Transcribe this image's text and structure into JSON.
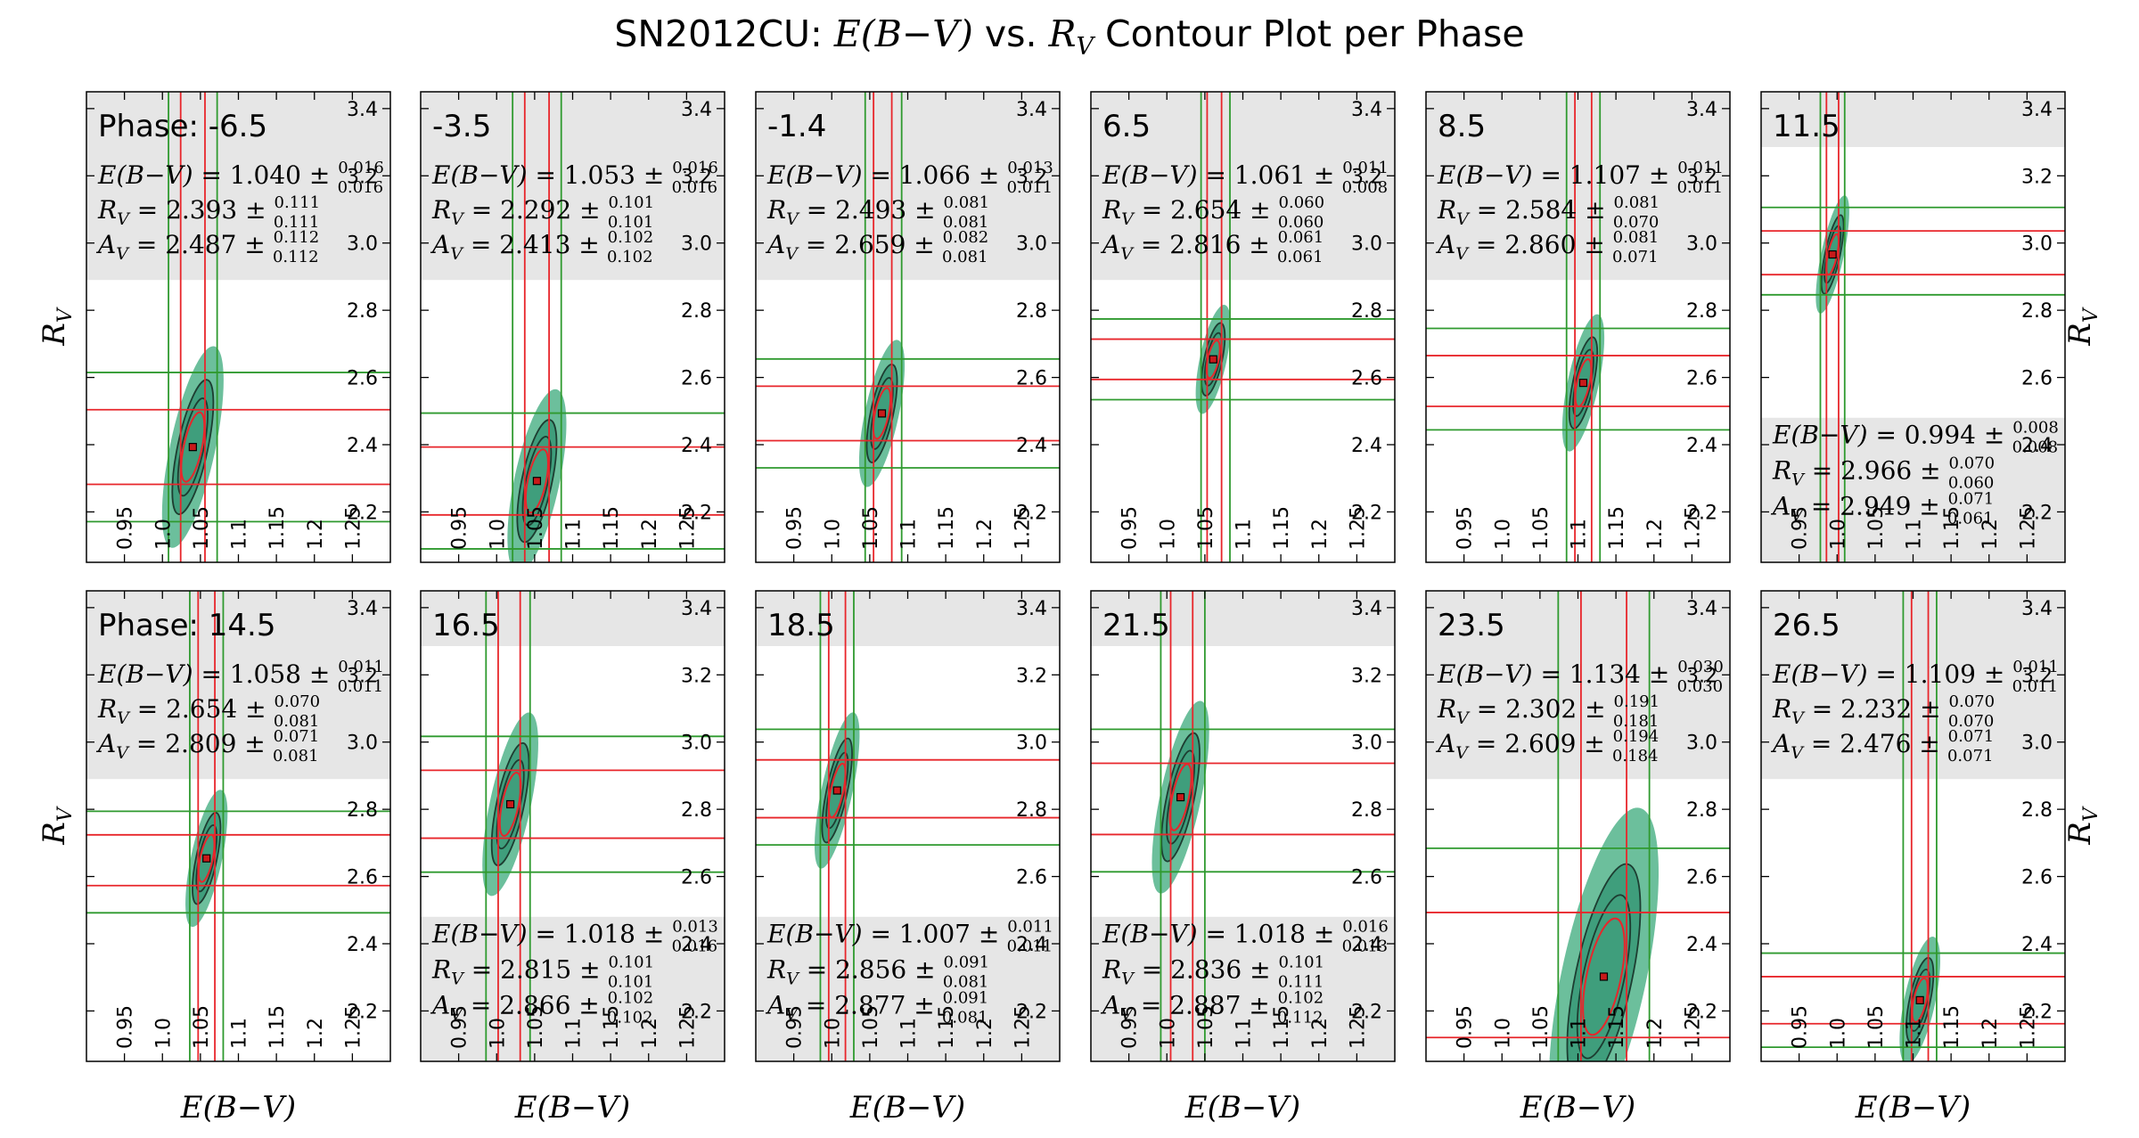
{
  "figure": {
    "title": {
      "prefix": "SN2012CU: ",
      "math1": "E(B−V)",
      "middle": " vs. ",
      "math2": "R",
      "math2_sub": "V",
      "suffix": " Contour Plot per Phase"
    },
    "xlabel": "E(B−V)",
    "ylabel": "R",
    "ylabel_sub": "V"
  },
  "colors": {
    "fill_outer": "#6cbf9c",
    "fill_inner": "#3f9e7c",
    "contour": "#1d3d31",
    "red": "#e8262b",
    "green": "#2f9a2f",
    "box": "#e6e6e6",
    "marker": "#c81a1a"
  },
  "chart_data": [
    {
      "type": "scatter",
      "phase": "Phase: -6.5",
      "ebv": 1.04,
      "ebv_up": "0.016",
      "ebv_dn": "0.016",
      "ebv_s": "1.040",
      "rv": 2.393,
      "rv_up": "0.111",
      "rv_dn": "0.111",
      "rv_s": "2.393",
      "av_s": "2.487",
      "av_up": "0.112",
      "av_dn": "0.112",
      "box": "top",
      "xlim": [
        0.9,
        1.3
      ],
      "ylim": [
        2.05,
        3.45
      ],
      "xticks": [
        "0.95",
        "1.0",
        "1.05",
        "1.1",
        "1.15",
        "1.2",
        "1.25"
      ],
      "yticks": [
        "2.2",
        "2.4",
        "2.6",
        "2.8",
        "3.0",
        "3.2",
        "3.4"
      ]
    },
    {
      "type": "scatter",
      "phase": "-3.5",
      "ebv": 1.053,
      "ebv_up": "0.016",
      "ebv_dn": "0.016",
      "ebv_s": "1.053",
      "rv": 2.292,
      "rv_up": "0.101",
      "rv_dn": "0.101",
      "rv_s": "2.292",
      "av_s": "2.413",
      "av_up": "0.102",
      "av_dn": "0.102",
      "box": "top",
      "xlim": [
        0.9,
        1.3
      ],
      "ylim": [
        2.05,
        3.45
      ],
      "xticks": [
        "0.95",
        "1.0",
        "1.05",
        "1.1",
        "1.15",
        "1.2",
        "1.25"
      ],
      "yticks": [
        "2.2",
        "2.4",
        "2.6",
        "2.8",
        "3.0",
        "3.2",
        "3.4"
      ]
    },
    {
      "type": "scatter",
      "phase": "-1.4",
      "ebv": 1.066,
      "ebv_up": "0.013",
      "ebv_dn": "0.011",
      "ebv_s": "1.066",
      "rv": 2.493,
      "rv_up": "0.081",
      "rv_dn": "0.081",
      "rv_s": "2.493",
      "av_s": "2.659",
      "av_up": "0.082",
      "av_dn": "0.081",
      "box": "top",
      "xlim": [
        0.9,
        1.3
      ],
      "ylim": [
        2.05,
        3.45
      ],
      "xticks": [
        "0.95",
        "1.0",
        "1.05",
        "1.1",
        "1.15",
        "1.2",
        "1.25"
      ],
      "yticks": [
        "2.2",
        "2.4",
        "2.6",
        "2.8",
        "3.0",
        "3.2",
        "3.4"
      ]
    },
    {
      "type": "scatter",
      "phase": "6.5",
      "ebv": 1.061,
      "ebv_up": "0.011",
      "ebv_dn": "0.008",
      "ebv_s": "1.061",
      "rv": 2.654,
      "rv_up": "0.060",
      "rv_dn": "0.060",
      "rv_s": "2.654",
      "av_s": "2.816",
      "av_up": "0.061",
      "av_dn": "0.061",
      "box": "top",
      "xlim": [
        0.9,
        1.3
      ],
      "ylim": [
        2.05,
        3.45
      ],
      "xticks": [
        "0.95",
        "1.0",
        "1.05",
        "1.1",
        "1.15",
        "1.2",
        "1.25"
      ],
      "yticks": [
        "2.2",
        "2.4",
        "2.6",
        "2.8",
        "3.0",
        "3.2",
        "3.4"
      ]
    },
    {
      "type": "scatter",
      "phase": "8.5",
      "ebv": 1.107,
      "ebv_up": "0.011",
      "ebv_dn": "0.011",
      "ebv_s": "1.107",
      "rv": 2.584,
      "rv_up": "0.081",
      "rv_dn": "0.070",
      "rv_s": "2.584",
      "av_s": "2.860",
      "av_up": "0.081",
      "av_dn": "0.071",
      "box": "top",
      "xlim": [
        0.9,
        1.3
      ],
      "ylim": [
        2.05,
        3.45
      ],
      "xticks": [
        "0.95",
        "1.0",
        "1.05",
        "1.1",
        "1.15",
        "1.2",
        "1.25"
      ],
      "yticks": [
        "2.2",
        "2.4",
        "2.6",
        "2.8",
        "3.0",
        "3.2",
        "3.4"
      ]
    },
    {
      "type": "scatter",
      "phase": "11.5",
      "ebv": 0.994,
      "ebv_up": "0.008",
      "ebv_dn": "0.008",
      "ebv_s": "0.994",
      "rv": 2.966,
      "rv_up": "0.070",
      "rv_dn": "0.060",
      "rv_s": "2.966",
      "av_s": "2.949",
      "av_up": "0.071",
      "av_dn": "0.061",
      "box": "bottom",
      "xlim": [
        0.9,
        1.3
      ],
      "ylim": [
        2.05,
        3.45
      ],
      "xticks": [
        "0.95",
        "1.0",
        "1.05",
        "1.1",
        "1.15",
        "1.2",
        "1.25"
      ],
      "yticks": [
        "2.2",
        "2.4",
        "2.6",
        "2.8",
        "3.0",
        "3.2",
        "3.4"
      ]
    },
    {
      "type": "scatter",
      "phase": "Phase: 14.5",
      "ebv": 1.058,
      "ebv_up": "0.011",
      "ebv_dn": "0.011",
      "ebv_s": "1.058",
      "rv": 2.654,
      "rv_up": "0.070",
      "rv_dn": "0.081",
      "rv_s": "2.654",
      "av_s": "2.809",
      "av_up": "0.071",
      "av_dn": "0.081",
      "box": "top",
      "xlim": [
        0.9,
        1.3
      ],
      "ylim": [
        2.05,
        3.45
      ],
      "xticks": [
        "0.95",
        "1.0",
        "1.05",
        "1.1",
        "1.15",
        "1.2",
        "1.25"
      ],
      "yticks": [
        "2.2",
        "2.4",
        "2.6",
        "2.8",
        "3.0",
        "3.2",
        "3.4"
      ]
    },
    {
      "type": "scatter",
      "phase": "16.5",
      "ebv": 1.018,
      "ebv_up": "0.013",
      "ebv_dn": "0.016",
      "ebv_s": "1.018",
      "rv": 2.815,
      "rv_up": "0.101",
      "rv_dn": "0.101",
      "rv_s": "2.815",
      "av_s": "2.866",
      "av_up": "0.102",
      "av_dn": "0.102",
      "box": "bottom",
      "xlim": [
        0.9,
        1.3
      ],
      "ylim": [
        2.05,
        3.45
      ],
      "xticks": [
        "0.95",
        "1.0",
        "1.05",
        "1.1",
        "1.15",
        "1.2",
        "1.25"
      ],
      "yticks": [
        "2.2",
        "2.4",
        "2.6",
        "2.8",
        "3.0",
        "3.2",
        "3.4"
      ]
    },
    {
      "type": "scatter",
      "phase": "18.5",
      "ebv": 1.007,
      "ebv_up": "0.011",
      "ebv_dn": "0.011",
      "ebv_s": "1.007",
      "rv": 2.856,
      "rv_up": "0.091",
      "rv_dn": "0.081",
      "rv_s": "2.856",
      "av_s": "2.877",
      "av_up": "0.091",
      "av_dn": "0.081",
      "box": "bottom",
      "xlim": [
        0.9,
        1.3
      ],
      "ylim": [
        2.05,
        3.45
      ],
      "xticks": [
        "0.95",
        "1.0",
        "1.05",
        "1.1",
        "1.15",
        "1.2",
        "1.25"
      ],
      "yticks": [
        "2.2",
        "2.4",
        "2.6",
        "2.8",
        "3.0",
        "3.2",
        "3.4"
      ]
    },
    {
      "type": "scatter",
      "phase": "21.5",
      "ebv": 1.018,
      "ebv_up": "0.016",
      "ebv_dn": "0.013",
      "ebv_s": "1.018",
      "rv": 2.836,
      "rv_up": "0.101",
      "rv_dn": "0.111",
      "rv_s": "2.836",
      "av_s": "2.887",
      "av_up": "0.102",
      "av_dn": "0.112",
      "box": "bottom",
      "xlim": [
        0.9,
        1.3
      ],
      "ylim": [
        2.05,
        3.45
      ],
      "xticks": [
        "0.95",
        "1.0",
        "1.05",
        "1.1",
        "1.15",
        "1.2",
        "1.25"
      ],
      "yticks": [
        "2.2",
        "2.4",
        "2.6",
        "2.8",
        "3.0",
        "3.2",
        "3.4"
      ]
    },
    {
      "type": "scatter",
      "phase": "23.5",
      "ebv": 1.134,
      "ebv_up": "0.030",
      "ebv_dn": "0.030",
      "ebv_s": "1.134",
      "rv": 2.302,
      "rv_up": "0.191",
      "rv_dn": "0.181",
      "rv_s": "2.302",
      "av_s": "2.609",
      "av_up": "0.194",
      "av_dn": "0.184",
      "box": "top",
      "xlim": [
        0.9,
        1.3
      ],
      "ylim": [
        2.05,
        3.45
      ],
      "xticks": [
        "0.95",
        "1.0",
        "1.05",
        "1.1",
        "1.15",
        "1.2",
        "1.25"
      ],
      "yticks": [
        "2.2",
        "2.4",
        "2.6",
        "2.8",
        "3.0",
        "3.2",
        "3.4"
      ]
    },
    {
      "type": "scatter",
      "phase": "26.5",
      "ebv": 1.109,
      "ebv_up": "0.011",
      "ebv_dn": "0.011",
      "ebv_s": "1.109",
      "rv": 2.232,
      "rv_up": "0.070",
      "rv_dn": "0.070",
      "rv_s": "2.232",
      "av_s": "2.476",
      "av_up": "0.071",
      "av_dn": "0.071",
      "box": "top",
      "xlim": [
        0.9,
        1.3
      ],
      "ylim": [
        2.05,
        3.45
      ],
      "xticks": [
        "0.95",
        "1.0",
        "1.05",
        "1.1",
        "1.15",
        "1.2",
        "1.25"
      ],
      "yticks": [
        "2.2",
        "2.4",
        "2.6",
        "2.8",
        "3.0",
        "3.2",
        "3.4"
      ]
    }
  ]
}
